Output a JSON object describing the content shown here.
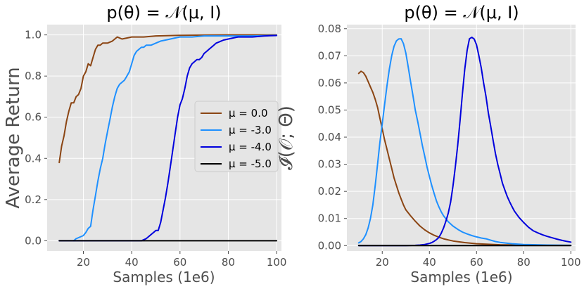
{
  "chart_data": [
    {
      "type": "line",
      "title": "p(θ) = 𝒩(μ, I)",
      "xlabel": "Samples (1e6)",
      "ylabel": "Average Return",
      "xlim": [
        5,
        102
      ],
      "ylim": [
        -0.05,
        1.05
      ],
      "xticks": [
        20,
        40,
        60,
        80,
        100
      ],
      "xtick_labels": [
        "20",
        "40",
        "60",
        "80",
        "100"
      ],
      "yticks": [
        0.0,
        0.2,
        0.4,
        0.6,
        0.8,
        1.0
      ],
      "ytick_labels": [
        "0.0",
        "0.2",
        "0.4",
        "0.6",
        "0.8",
        "1.0"
      ],
      "legend_position": "center-right",
      "series": [
        {
          "name": "μ = 0.0",
          "color": "#8b4513",
          "x": [
            10,
            11,
            12,
            13,
            14,
            15,
            16,
            17,
            18,
            19,
            20,
            21,
            22,
            23,
            24,
            25,
            26,
            27,
            28,
            29,
            30,
            32,
            34,
            36,
            40,
            45,
            50,
            60,
            70,
            80,
            90,
            100
          ],
          "y": [
            0.38,
            0.46,
            0.51,
            0.58,
            0.63,
            0.67,
            0.67,
            0.7,
            0.71,
            0.74,
            0.8,
            0.82,
            0.86,
            0.85,
            0.89,
            0.93,
            0.95,
            0.95,
            0.96,
            0.96,
            0.96,
            0.97,
            0.99,
            0.98,
            0.99,
            0.99,
            0.995,
            0.998,
            0.999,
            1.0,
            1.0,
            1.0
          ]
        },
        {
          "name": "μ = -3.0",
          "color": "#1e90ff",
          "x": [
            16,
            17,
            18,
            19,
            20,
            21,
            22,
            23,
            24,
            25,
            26,
            27,
            28,
            29,
            30,
            31,
            32,
            33,
            34,
            35,
            36,
            37,
            38,
            39,
            40,
            41,
            42,
            43,
            44,
            45,
            46,
            47,
            48,
            50,
            52,
            54,
            56,
            58,
            60,
            65,
            70,
            80,
            90,
            100
          ],
          "y": [
            0.0,
            0.01,
            0.015,
            0.02,
            0.025,
            0.04,
            0.06,
            0.07,
            0.15,
            0.22,
            0.29,
            0.35,
            0.4,
            0.47,
            0.53,
            0.59,
            0.65,
            0.7,
            0.74,
            0.76,
            0.77,
            0.78,
            0.8,
            0.82,
            0.86,
            0.9,
            0.92,
            0.93,
            0.94,
            0.94,
            0.95,
            0.95,
            0.95,
            0.96,
            0.97,
            0.975,
            0.98,
            0.985,
            0.99,
            0.99,
            0.995,
            0.995,
            0.995,
            0.998
          ]
        },
        {
          "name": "μ = -4.0",
          "color": "#0000dd",
          "x": [
            10,
            44,
            45,
            46,
            47,
            48,
            49,
            50,
            51,
            52,
            53,
            54,
            55,
            56,
            57,
            58,
            59,
            60,
            61,
            62,
            63,
            64,
            65,
            66,
            67,
            68,
            69,
            70,
            71,
            72,
            73,
            74,
            75,
            76,
            77,
            78,
            80,
            82,
            84,
            86,
            88,
            90,
            95,
            100
          ],
          "y": [
            0.0,
            0.0,
            0.005,
            0.01,
            0.02,
            0.03,
            0.04,
            0.05,
            0.05,
            0.09,
            0.15,
            0.21,
            0.28,
            0.36,
            0.44,
            0.52,
            0.6,
            0.66,
            0.69,
            0.74,
            0.8,
            0.84,
            0.86,
            0.87,
            0.88,
            0.88,
            0.89,
            0.91,
            0.92,
            0.93,
            0.94,
            0.95,
            0.96,
            0.965,
            0.97,
            0.975,
            0.98,
            0.985,
            0.99,
            0.99,
            0.99,
            0.99,
            0.995,
            0.997
          ]
        },
        {
          "name": "μ = -5.0",
          "color": "#000000",
          "x": [
            10,
            100
          ],
          "y": [
            0.0,
            0.0
          ]
        }
      ]
    },
    {
      "type": "line",
      "title": "p(θ) = 𝒩(μ, I)",
      "xlabel": "Samples (1e6)",
      "ylabel": "𝓘̂(𝒪; Θ)",
      "xlim": [
        5,
        102
      ],
      "ylim": [
        -0.002,
        0.0815
      ],
      "xticks": [
        20,
        40,
        60,
        80,
        100
      ],
      "xtick_labels": [
        "20",
        "40",
        "60",
        "80",
        "100"
      ],
      "yticks": [
        0.0,
        0.01,
        0.02,
        0.03,
        0.04,
        0.05,
        0.06,
        0.07,
        0.08
      ],
      "ytick_labels": [
        "0.00",
        "0.01",
        "0.02",
        "0.03",
        "0.04",
        "0.05",
        "0.06",
        "0.07",
        "0.08"
      ],
      "series": [
        {
          "name": "μ = 0.0",
          "color": "#8b4513",
          "x": [
            10,
            11,
            12,
            13,
            14,
            15,
            16,
            17,
            18,
            19,
            20,
            21,
            22,
            23,
            24,
            25,
            26,
            27,
            28,
            29,
            30,
            32,
            34,
            36,
            38,
            40,
            42,
            44,
            46,
            48,
            50,
            55,
            60,
            65,
            70,
            80,
            90,
            100
          ],
          "y": [
            0.0635,
            0.0643,
            0.0638,
            0.0625,
            0.0605,
            0.0585,
            0.0565,
            0.054,
            0.051,
            0.047,
            0.043,
            0.039,
            0.0355,
            0.032,
            0.0285,
            0.025,
            0.0222,
            0.0195,
            0.0172,
            0.015,
            0.0132,
            0.011,
            0.009,
            0.0072,
            0.0058,
            0.0047,
            0.0038,
            0.0031,
            0.0025,
            0.0021,
            0.0017,
            0.0011,
            0.0007,
            0.0005,
            0.0003,
            0.0002,
            0.0001,
            0.0001
          ]
        },
        {
          "name": "μ = -3.0",
          "color": "#1e90ff",
          "x": [
            10,
            11,
            12,
            13,
            14,
            15,
            16,
            17,
            18,
            19,
            20,
            21,
            22,
            23,
            24,
            25,
            26,
            27,
            28,
            29,
            30,
            31,
            32,
            33,
            34,
            35,
            36,
            37,
            38,
            39,
            40,
            41,
            42,
            43,
            44,
            45,
            46,
            48,
            50,
            52,
            54,
            56,
            58,
            60,
            62,
            64,
            66,
            68,
            70,
            75,
            80,
            90,
            100
          ],
          "y": [
            0.001,
            0.0015,
            0.0025,
            0.004,
            0.0065,
            0.01,
            0.015,
            0.022,
            0.03,
            0.038,
            0.045,
            0.052,
            0.059,
            0.065,
            0.07,
            0.0735,
            0.0755,
            0.0762,
            0.0763,
            0.0745,
            0.071,
            0.066,
            0.0605,
            0.0555,
            0.05,
            0.046,
            0.0415,
            0.037,
            0.033,
            0.029,
            0.0255,
            0.0222,
            0.0192,
            0.0165,
            0.0143,
            0.0125,
            0.011,
            0.0088,
            0.0072,
            0.006,
            0.005,
            0.0043,
            0.0037,
            0.0032,
            0.0028,
            0.0025,
            0.002,
            0.0015,
            0.0012,
            0.0007,
            0.0004,
            0.0002,
            0.0001
          ]
        },
        {
          "name": "μ = -4.0",
          "color": "#0000dd",
          "x": [
            10,
            30,
            34,
            36,
            38,
            40,
            41,
            42,
            43,
            44,
            45,
            46,
            47,
            48,
            49,
            50,
            51,
            52,
            53,
            54,
            55,
            56,
            57,
            58,
            59,
            60,
            61,
            62,
            63,
            64,
            65,
            66,
            67,
            68,
            69,
            70,
            71,
            72,
            73,
            74,
            75,
            76,
            78,
            80,
            82,
            84,
            86,
            88,
            90,
            92,
            94,
            96,
            98,
            100
          ],
          "y": [
            0.0,
            0.0,
            0.0001,
            0.0002,
            0.0004,
            0.0008,
            0.0011,
            0.0016,
            0.0022,
            0.003,
            0.0045,
            0.0065,
            0.009,
            0.012,
            0.016,
            0.022,
            0.029,
            0.037,
            0.046,
            0.056,
            0.065,
            0.072,
            0.0763,
            0.0768,
            0.0762,
            0.074,
            0.07,
            0.0655,
            0.06,
            0.055,
            0.049,
            0.044,
            0.039,
            0.034,
            0.03,
            0.0265,
            0.023,
            0.0205,
            0.0182,
            0.0162,
            0.0145,
            0.0128,
            0.0104,
            0.0085,
            0.0068,
            0.0055,
            0.0047,
            0.004,
            0.0034,
            0.0029,
            0.0024,
            0.002,
            0.0016,
            0.0013
          ]
        },
        {
          "name": "μ = -5.0",
          "color": "#000000",
          "x": [
            10,
            100
          ],
          "y": [
            0.0,
            0.0
          ]
        }
      ]
    }
  ]
}
